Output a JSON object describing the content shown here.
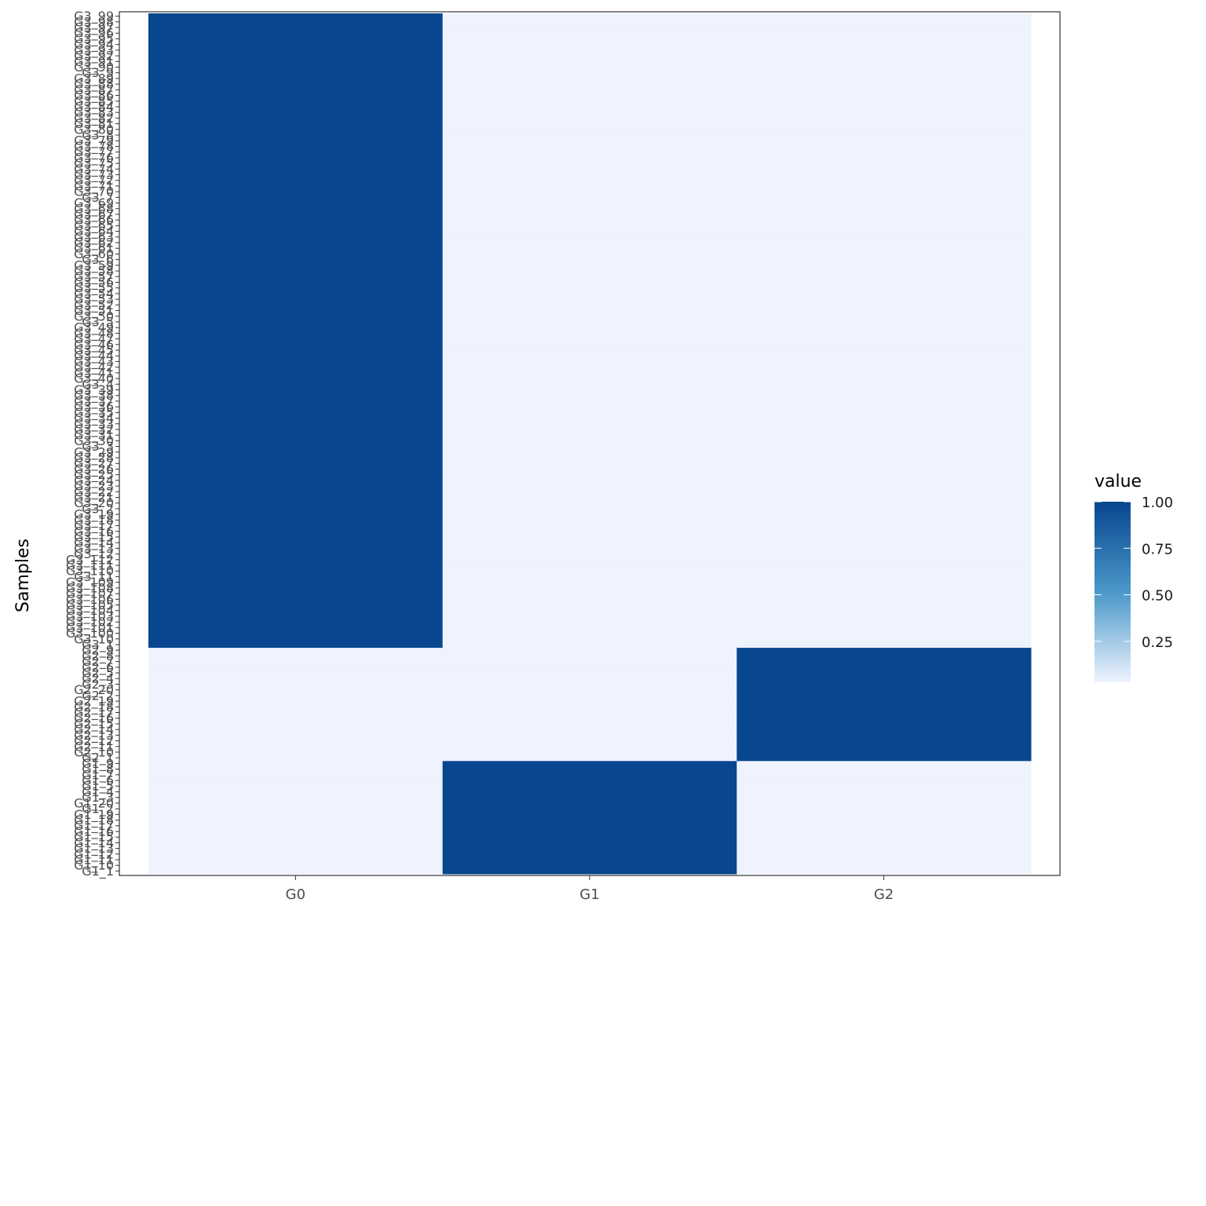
{
  "chart_data": {
    "type": "heatmap",
    "ylabel": "Samples",
    "xlabel": "",
    "x_categories": [
      "G0",
      "G1",
      "G2"
    ],
    "y_groups": [
      {
        "prefix": "G1",
        "column": "G1",
        "labels": [
          "G1_1",
          "G1_10",
          "G1_11",
          "G1_12",
          "G1_13",
          "G1_14",
          "G1_15",
          "G1_16",
          "G1_17",
          "G1_18",
          "G1_19",
          "G1_2",
          "G1_20",
          "G1_3",
          "G1_4",
          "G1_5",
          "G1_6",
          "G1_7",
          "G1_8",
          "G1_9"
        ]
      },
      {
        "prefix": "G2",
        "column": "G2",
        "labels": [
          "G2_1",
          "G2_10",
          "G2_11",
          "G2_12",
          "G2_13",
          "G2_14",
          "G2_15",
          "G2_16",
          "G2_17",
          "G2_18",
          "G2_19",
          "G2_2",
          "G2_20",
          "G2_3",
          "G2_4",
          "G2_5",
          "G2_6",
          "G2_7",
          "G2_8",
          "G2_9"
        ]
      },
      {
        "prefix": "G3",
        "column": "G0",
        "labels": [
          "G3_1",
          "G3_10",
          "G3_100",
          "G3_101",
          "G3_102",
          "G3_103",
          "G3_104",
          "G3_105",
          "G3_106",
          "G3_107",
          "G3_108",
          "G3_109",
          "G3_11",
          "G3_110",
          "G3_111",
          "G3_112",
          "G3_12",
          "G3_13",
          "G3_14",
          "G3_15",
          "G3_16",
          "G3_17",
          "G3_18",
          "G3_19",
          "G3_2",
          "G3_20",
          "G3_21",
          "G3_22",
          "G3_23",
          "G3_24",
          "G3_25",
          "G3_26",
          "G3_27",
          "G3_28",
          "G3_29",
          "G3_3",
          "G3_30",
          "G3_31",
          "G3_32",
          "G3_33",
          "G3_34",
          "G3_35",
          "G3_36",
          "G3_37",
          "G3_38",
          "G3_39",
          "G3_4",
          "G3_40",
          "G3_41",
          "G3_42",
          "G3_43",
          "G3_44",
          "G3_45",
          "G3_46",
          "G3_47",
          "G3_48",
          "G3_49",
          "G3_5",
          "G3_50",
          "G3_51",
          "G3_52",
          "G3_53",
          "G3_54",
          "G3_55",
          "G3_56",
          "G3_57",
          "G3_58",
          "G3_59",
          "G3_6",
          "G3_60",
          "G3_61",
          "G3_62",
          "G3_63",
          "G3_64",
          "G3_65",
          "G3_66",
          "G3_67",
          "G3_68",
          "G3_69",
          "G3_7",
          "G3_70",
          "G3_71",
          "G3_72",
          "G3_73",
          "G3_74",
          "G3_75",
          "G3_76",
          "G3_77",
          "G3_78",
          "G3_79",
          "G3_8",
          "G3_80",
          "G3_81",
          "G3_82",
          "G3_83",
          "G3_84",
          "G3_85",
          "G3_86",
          "G3_87",
          "G3_88",
          "G3_89",
          "G3_9",
          "G3_90",
          "G3_91",
          "G3_92",
          "G3_93",
          "G3_94",
          "G3_95",
          "G3_96",
          "G3_97",
          "G3_98",
          "G3_99"
        ]
      }
    ],
    "values_rule": "value = 1 where sample group column matches, else 0",
    "high_value": 1,
    "low_value": 0,
    "legend": {
      "title": "value",
      "position": "right",
      "breaks": [
        0.25,
        0.5,
        0.75,
        1.0
      ],
      "break_labels": [
        "0.25",
        "0.50",
        "0.75",
        "1.00"
      ],
      "range": [
        0.03,
        1.0
      ]
    },
    "colors": {
      "high": "#08468f",
      "mid": "#4a98c9",
      "low": "#eef3fe",
      "panel_border": "#333333",
      "tick_text": "#4d4d4d"
    },
    "grid": false
  }
}
